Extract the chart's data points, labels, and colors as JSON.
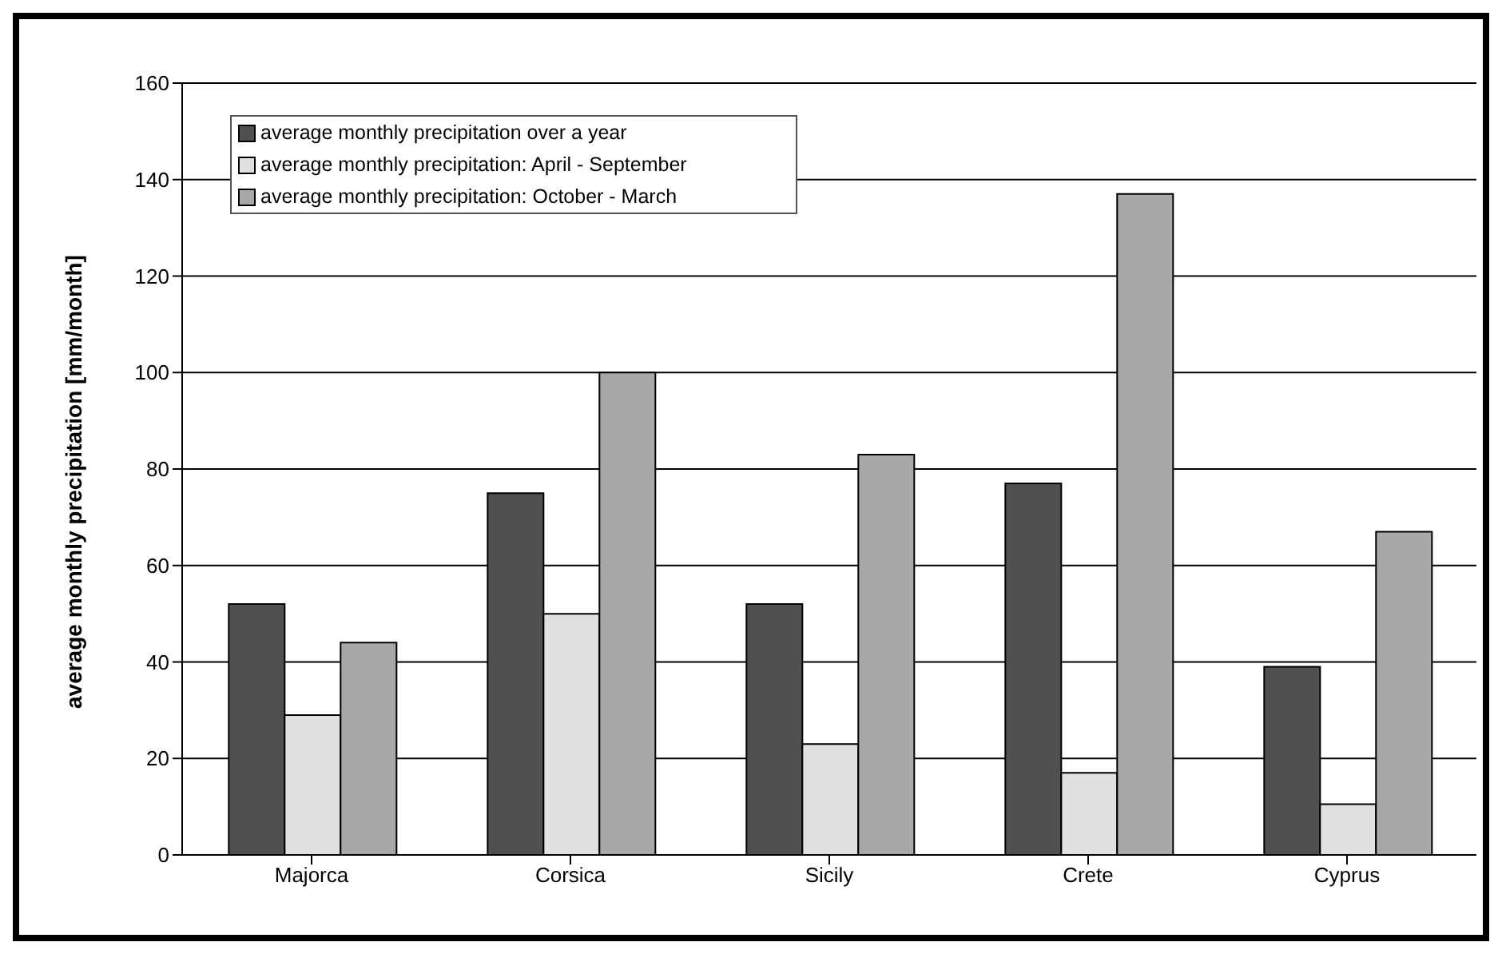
{
  "chart_data": {
    "type": "bar",
    "ylabel": "average monthly precipitation [mm/month]",
    "categories": [
      "Majorca",
      "Corsica",
      "Sicily",
      "Crete",
      "Cyprus"
    ],
    "series": [
      {
        "name": "average monthly precipitation over a year",
        "color": "#505050",
        "values": [
          52,
          75,
          52,
          77,
          39
        ]
      },
      {
        "name": "average monthly precipitation: April - September",
        "color": "#e0e0e0",
        "values": [
          29,
          50,
          23,
          17,
          10.5
        ]
      },
      {
        "name": "average monthly precipitation: October -  March",
        "color": "#a8a8a8",
        "values": [
          44,
          100,
          83,
          137,
          67
        ]
      }
    ],
    "ylim": [
      0,
      160
    ],
    "yticks": [
      0,
      20,
      40,
      60,
      80,
      100,
      120,
      140,
      160
    ],
    "grid": "y",
    "legend": "top left"
  }
}
